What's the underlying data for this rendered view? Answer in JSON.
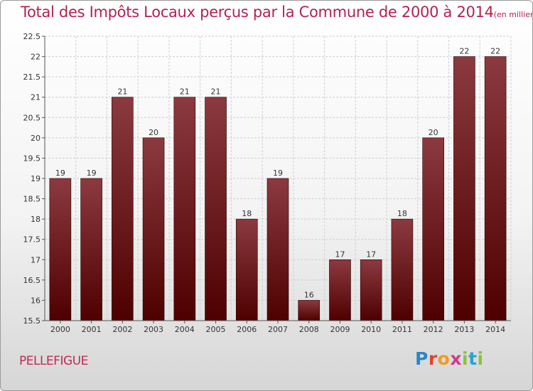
{
  "header": {
    "title": "Total des Impôts Locaux perçus par la Commune de 2000 à 2014",
    "unit": "(en milliers d'€)"
  },
  "footer": {
    "commune": "PELLEFIGUE",
    "logo_letters": [
      "P",
      "r",
      "o",
      "x",
      "i",
      "t",
      "i"
    ]
  },
  "colors": {
    "bar_top": "#8b3a3f",
    "bar_bottom": "#4e0000",
    "title": "#b5224e",
    "grid": "#d0d0d0"
  },
  "chart_data": {
    "type": "bar",
    "categories": [
      "2000",
      "2001",
      "2002",
      "2003",
      "2004",
      "2005",
      "2006",
      "2007",
      "2008",
      "2009",
      "2010",
      "2011",
      "2012",
      "2013",
      "2014"
    ],
    "values": [
      19,
      19,
      21,
      20,
      21,
      21,
      18,
      19,
      16,
      17,
      17,
      18,
      20,
      22,
      22
    ],
    "data_labels": [
      "19",
      "19",
      "21",
      "20",
      "21",
      "21",
      "18",
      "19",
      "16",
      "17",
      "17",
      "18",
      "20",
      "22",
      "22"
    ],
    "ylim": [
      15.5,
      22.5
    ],
    "yticks": [
      15.5,
      16,
      16.5,
      17,
      17.5,
      18,
      18.5,
      19,
      19.5,
      20,
      20.5,
      21,
      21.5,
      22,
      22.5
    ],
    "ytick_labels": [
      "15.5",
      "16",
      "16.5",
      "17",
      "17.5",
      "18",
      "18.5",
      "19",
      "19.5",
      "20",
      "20.5",
      "21",
      "21.5",
      "22",
      "22.5"
    ],
    "grid": true,
    "legend": "none"
  }
}
